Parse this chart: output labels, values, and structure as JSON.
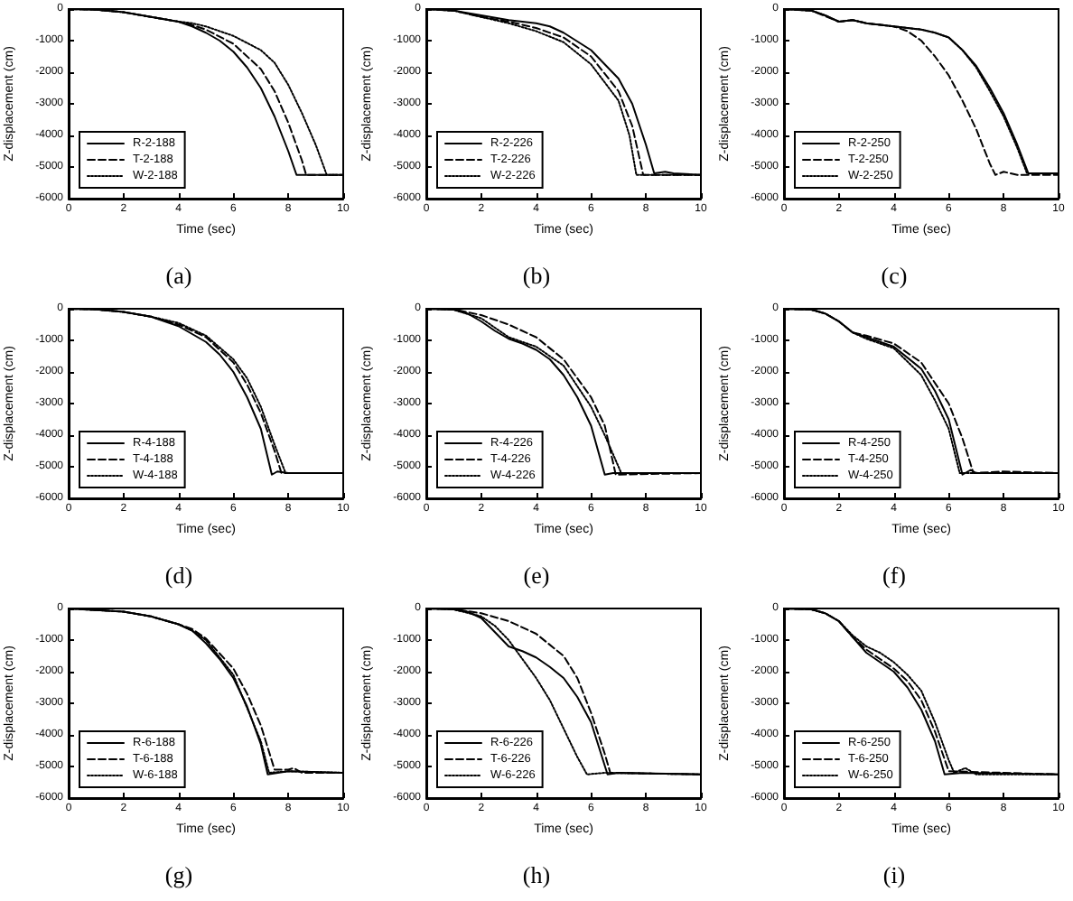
{
  "chart_data": [
    {
      "type": "line",
      "xlabel": "Time (sec)",
      "ylabel": "Z-displacement (cm)",
      "annotations": [
        "(a)"
      ],
      "xlim": [
        0,
        10
      ],
      "ylim": [
        -6000,
        0
      ],
      "xticks": [
        0,
        2,
        4,
        6,
        8,
        10
      ],
      "yticks": [
        -6000,
        -5000,
        -4000,
        -3000,
        -2000,
        -1000,
        0
      ],
      "legend": "bottom left",
      "series": [
        {
          "name": "R-2-188",
          "color": "#000000",
          "line_style": "solid",
          "x": [
            0,
            1,
            2,
            3,
            4,
            4.5,
            5,
            5.5,
            6,
            6.5,
            7,
            7.5,
            8,
            8.3,
            10
          ],
          "values": [
            0,
            -20,
            -100,
            -250,
            -400,
            -550,
            -750,
            -1000,
            -1350,
            -1850,
            -2500,
            -3400,
            -4500,
            -5250,
            -5250
          ]
        },
        {
          "name": "T-2-188",
          "color": "#000000",
          "line_style": "dashed",
          "x": [
            0,
            1,
            2,
            3,
            4,
            4.3,
            5,
            6,
            7,
            7.5,
            8,
            8.5,
            8.65,
            10
          ],
          "values": [
            0,
            -20,
            -100,
            -250,
            -400,
            -450,
            -650,
            -1100,
            -1900,
            -2600,
            -3600,
            -4800,
            -5250,
            -5250
          ]
        },
        {
          "name": "W-2-188",
          "color": "#000000",
          "line_style": "dotted",
          "x": [
            0,
            1,
            2,
            3,
            4,
            4.5,
            5,
            6,
            7,
            7.5,
            8,
            8.5,
            9,
            9.4,
            10
          ],
          "values": [
            0,
            -20,
            -100,
            -250,
            -400,
            -450,
            -550,
            -850,
            -1300,
            -1700,
            -2400,
            -3300,
            -4300,
            -5250,
            -5250
          ]
        }
      ]
    },
    {
      "type": "line",
      "xlabel": "Time (sec)",
      "ylabel": "Z-displacement (cm)",
      "annotations": [
        "(b)"
      ],
      "xlim": [
        0,
        10
      ],
      "ylim": [
        -6000,
        0
      ],
      "xticks": [
        0,
        2,
        4,
        6,
        8,
        10
      ],
      "yticks": [
        -6000,
        -5000,
        -4000,
        -3000,
        -2000,
        -1000,
        0
      ],
      "legend": "bottom left",
      "series": [
        {
          "name": "R-2-226",
          "color": "#000000",
          "line_style": "solid",
          "x": [
            0,
            1,
            2,
            3,
            4,
            4.5,
            5,
            6,
            7,
            7.5,
            8,
            8.3,
            8.7,
            9,
            10
          ],
          "values": [
            0,
            -50,
            -200,
            -350,
            -450,
            -550,
            -750,
            -1300,
            -2200,
            -3000,
            -4300,
            -5200,
            -5150,
            -5200,
            -5250
          ]
        },
        {
          "name": "T-2-226",
          "color": "#000000",
          "line_style": "dashed",
          "x": [
            0,
            1,
            2,
            3,
            4,
            5,
            6,
            7,
            7.5,
            7.9,
            10
          ],
          "values": [
            0,
            -50,
            -250,
            -400,
            -600,
            -900,
            -1500,
            -2600,
            -3700,
            -5250,
            -5250
          ]
        },
        {
          "name": "W-2-226",
          "color": "#000000",
          "line_style": "dotted",
          "x": [
            0,
            1,
            2,
            3,
            4,
            5,
            6,
            7,
            7.4,
            7.65,
            10
          ],
          "values": [
            0,
            -50,
            -250,
            -450,
            -700,
            -1050,
            -1750,
            -2900,
            -4000,
            -5250,
            -5250
          ]
        }
      ]
    },
    {
      "type": "line",
      "xlabel": "Time (sec)",
      "ylabel": "Z-displacement (cm)",
      "annotations": [
        "(c)"
      ],
      "xlim": [
        0,
        10
      ],
      "ylim": [
        -6000,
        0
      ],
      "xticks": [
        0,
        2,
        4,
        6,
        8,
        10
      ],
      "yticks": [
        -6000,
        -5000,
        -4000,
        -3000,
        -2000,
        -1000,
        0
      ],
      "legend": "bottom left",
      "series": [
        {
          "name": "R-2-250",
          "color": "#000000",
          "line_style": "solid",
          "x": [
            0,
            1,
            1.5,
            2,
            2.5,
            3,
            4,
            5,
            5.5,
            6,
            6.5,
            7,
            7.5,
            8,
            8.5,
            8.9,
            10
          ],
          "values": [
            0,
            -50,
            -200,
            -400,
            -350,
            -450,
            -550,
            -650,
            -750,
            -900,
            -1300,
            -1800,
            -2500,
            -3300,
            -4300,
            -5200,
            -5200
          ]
        },
        {
          "name": "T-2-250",
          "color": "#000000",
          "line_style": "dashed",
          "x": [
            0,
            1,
            2,
            2.5,
            3,
            4,
            4.5,
            5,
            5.5,
            6,
            6.5,
            7,
            7.5,
            7.7,
            8,
            8.5,
            10
          ],
          "values": [
            0,
            -50,
            -400,
            -350,
            -450,
            -550,
            -700,
            -1000,
            -1500,
            -2100,
            -2900,
            -3800,
            -4900,
            -5250,
            -5150,
            -5250,
            -5250
          ]
        },
        {
          "name": "W-2-250",
          "color": "#000000",
          "line_style": "dotted",
          "x": [
            0,
            1,
            1.5,
            2,
            2.5,
            3,
            4,
            5,
            5.5,
            6,
            6.5,
            7,
            7.5,
            8,
            8.5,
            8.85,
            10
          ],
          "values": [
            0,
            -50,
            -200,
            -400,
            -350,
            -450,
            -550,
            -650,
            -750,
            -900,
            -1300,
            -1850,
            -2600,
            -3400,
            -4400,
            -5200,
            -5200
          ]
        }
      ]
    },
    {
      "type": "line",
      "xlabel": "Time (sec)",
      "ylabel": "Z-displacement (cm)",
      "annotations": [
        "(d)"
      ],
      "xlim": [
        0,
        10
      ],
      "ylim": [
        -6000,
        0
      ],
      "xticks": [
        0,
        2,
        4,
        6,
        8,
        10
      ],
      "yticks": [
        -6000,
        -5000,
        -4000,
        -3000,
        -2000,
        -1000,
        0
      ],
      "legend": "bottom left",
      "series": [
        {
          "name": "R-4-188",
          "color": "#000000",
          "line_style": "solid",
          "x": [
            0,
            1,
            2,
            3,
            4,
            5,
            5.5,
            6,
            6.5,
            7,
            7.4,
            7.6,
            8,
            10
          ],
          "values": [
            0,
            -20,
            -100,
            -250,
            -550,
            -1050,
            -1450,
            -2000,
            -2800,
            -3800,
            -5250,
            -5150,
            -5200,
            -5200
          ]
        },
        {
          "name": "T-4-188",
          "color": "#000000",
          "line_style": "dashed",
          "x": [
            0,
            1,
            2,
            3,
            4,
            5,
            6,
            6.5,
            7,
            7.5,
            7.75,
            10
          ],
          "values": [
            0,
            -20,
            -100,
            -250,
            -500,
            -900,
            -1700,
            -2400,
            -3300,
            -4500,
            -5200,
            -5200
          ]
        },
        {
          "name": "W-4-188",
          "color": "#000000",
          "line_style": "dotted",
          "x": [
            0,
            1,
            2,
            3,
            4,
            5,
            6,
            6.5,
            7,
            7.5,
            7.9,
            10
          ],
          "values": [
            0,
            -20,
            -100,
            -250,
            -450,
            -850,
            -1600,
            -2200,
            -3100,
            -4300,
            -5200,
            -5200
          ]
        }
      ]
    },
    {
      "type": "line",
      "xlabel": "Time (sec)",
      "ylabel": "Z-displacement (cm)",
      "annotations": [
        "(e)"
      ],
      "xlim": [
        0,
        10
      ],
      "ylim": [
        -6000,
        0
      ],
      "xticks": [
        0,
        2,
        4,
        6,
        8,
        10
      ],
      "yticks": [
        -6000,
        -5000,
        -4000,
        -3000,
        -2000,
        -1000,
        0
      ],
      "legend": "bottom left",
      "series": [
        {
          "name": "R-4-226",
          "color": "#000000",
          "line_style": "solid",
          "x": [
            0,
            1,
            1.5,
            2,
            2.5,
            3,
            3.5,
            4,
            4.5,
            5,
            5.5,
            6,
            6.5,
            6.8,
            10
          ],
          "values": [
            0,
            -30,
            -150,
            -400,
            -700,
            -950,
            -1100,
            -1300,
            -1600,
            -2100,
            -2800,
            -3700,
            -5250,
            -5200,
            -5200
          ]
        },
        {
          "name": "T-4-226",
          "color": "#000000",
          "line_style": "dashed",
          "x": [
            0,
            1,
            2,
            3,
            4,
            5,
            6,
            6.5,
            6.9,
            10
          ],
          "values": [
            0,
            -20,
            -200,
            -500,
            -900,
            -1600,
            -2800,
            -3700,
            -5250,
            -5200
          ]
        },
        {
          "name": "W-4-226",
          "color": "#000000",
          "line_style": "dotted",
          "x": [
            0,
            1,
            2,
            2.5,
            3,
            4,
            5,
            6,
            6.5,
            7.1,
            10
          ],
          "values": [
            0,
            -30,
            -300,
            -600,
            -900,
            -1200,
            -1800,
            -3100,
            -4000,
            -5200,
            -5200
          ]
        }
      ]
    },
    {
      "type": "line",
      "xlabel": "Time (sec)",
      "ylabel": "Z-displacement (cm)",
      "annotations": [
        "(f)"
      ],
      "xlim": [
        0,
        10
      ],
      "ylim": [
        -6000,
        0
      ],
      "xticks": [
        0,
        2,
        4,
        6,
        8,
        10
      ],
      "yticks": [
        -6000,
        -5000,
        -4000,
        -3000,
        -2000,
        -1000,
        0
      ],
      "legend": "bottom left",
      "series": [
        {
          "name": "R-4-250",
          "color": "#000000",
          "line_style": "solid",
          "x": [
            0,
            1,
            1.5,
            2,
            2.5,
            3,
            4,
            5,
            5.5,
            6,
            6.5,
            6.8,
            7,
            10
          ],
          "values": [
            0,
            -30,
            -150,
            -400,
            -750,
            -900,
            -1200,
            -1900,
            -2600,
            -3500,
            -5250,
            -5100,
            -5200,
            -5200
          ]
        },
        {
          "name": "T-4-250",
          "color": "#000000",
          "line_style": "dashed",
          "x": [
            0,
            1,
            1.5,
            2,
            2.5,
            3,
            4,
            5,
            6,
            6.5,
            6.9,
            8,
            10
          ],
          "values": [
            0,
            -30,
            -150,
            -400,
            -750,
            -850,
            -1100,
            -1700,
            -3000,
            -4100,
            -5200,
            -5150,
            -5200
          ]
        },
        {
          "name": "W-4-250",
          "color": "#000000",
          "line_style": "dotted",
          "x": [
            0,
            1,
            1.5,
            2,
            2.5,
            3,
            4,
            5,
            5.5,
            6,
            6.4,
            10
          ],
          "values": [
            0,
            -30,
            -150,
            -400,
            -750,
            -950,
            -1250,
            -2100,
            -2900,
            -3800,
            -5200,
            -5200
          ]
        }
      ]
    },
    {
      "type": "line",
      "xlabel": "Time (sec)",
      "ylabel": "Z-displacement (cm)",
      "annotations": [
        "(g)"
      ],
      "xlim": [
        0,
        10
      ],
      "ylim": [
        -6000,
        0
      ],
      "xticks": [
        0,
        2,
        4,
        6,
        8,
        10
      ],
      "yticks": [
        -6000,
        -5000,
        -4000,
        -3000,
        -2000,
        -1000,
        0
      ],
      "legend": "bottom left",
      "series": [
        {
          "name": "R-6-188",
          "color": "#000000",
          "line_style": "solid",
          "x": [
            0,
            2,
            3,
            4,
            4.5,
            5,
            5.5,
            6,
            6.5,
            7,
            7.25,
            8,
            10
          ],
          "values": [
            0,
            -100,
            -250,
            -500,
            -700,
            -1100,
            -1600,
            -2200,
            -3100,
            -4300,
            -5250,
            -5150,
            -5200
          ]
        },
        {
          "name": "T-6-188",
          "color": "#000000",
          "line_style": "dashed",
          "x": [
            0,
            2,
            3,
            4,
            4.5,
            5,
            6,
            6.5,
            7,
            7.5,
            8,
            8.2,
            8.5,
            10
          ],
          "values": [
            0,
            -100,
            -250,
            -500,
            -650,
            -950,
            -1900,
            -2700,
            -3700,
            -5100,
            -5100,
            -5050,
            -5200,
            -5200
          ]
        },
        {
          "name": "W-6-188",
          "color": "#000000",
          "line_style": "dotted",
          "x": [
            0,
            2,
            3,
            4,
            4.5,
            5,
            6,
            7,
            7.3,
            8,
            10
          ],
          "values": [
            0,
            -100,
            -250,
            -500,
            -700,
            -1000,
            -2100,
            -4200,
            -5200,
            -5150,
            -5200
          ]
        }
      ]
    },
    {
      "type": "line",
      "xlabel": "Time (sec)",
      "ylabel": "Z-displacement (cm)",
      "annotations": [
        "(h)"
      ],
      "xlim": [
        0,
        10
      ],
      "ylim": [
        -6000,
        0
      ],
      "xticks": [
        0,
        2,
        4,
        6,
        8,
        10
      ],
      "yticks": [
        -6000,
        -5000,
        -4000,
        -3000,
        -2000,
        -1000,
        0
      ],
      "legend": "bottom left",
      "series": [
        {
          "name": "R-6-226",
          "color": "#000000",
          "line_style": "solid",
          "x": [
            0,
            1,
            1.5,
            2,
            2.5,
            3,
            3.5,
            4,
            4.5,
            5,
            5.5,
            6,
            6.6,
            7,
            10
          ],
          "values": [
            0,
            -30,
            -100,
            -300,
            -750,
            -1200,
            -1350,
            -1550,
            -1850,
            -2200,
            -2800,
            -3600,
            -5250,
            -5200,
            -5250
          ]
        },
        {
          "name": "T-6-226",
          "color": "#000000",
          "line_style": "dashed",
          "x": [
            0,
            1,
            2,
            3,
            4,
            5,
            5.5,
            6,
            6.5,
            6.7,
            10
          ],
          "values": [
            0,
            -20,
            -150,
            -400,
            -800,
            -1500,
            -2200,
            -3300,
            -4600,
            -5200,
            -5250
          ]
        },
        {
          "name": "W-6-226",
          "color": "#000000",
          "line_style": "dotted",
          "x": [
            0,
            1,
            2,
            2.5,
            3,
            3.5,
            4,
            4.5,
            5,
            5.5,
            5.85,
            6.5,
            10
          ],
          "values": [
            0,
            -30,
            -250,
            -550,
            -1000,
            -1600,
            -2200,
            -2900,
            -3800,
            -4700,
            -5250,
            -5200,
            -5250
          ]
        }
      ]
    },
    {
      "type": "line",
      "xlabel": "Time (sec)",
      "ylabel": "Z-displacement (cm)",
      "annotations": [
        "(i)"
      ],
      "xlim": [
        0,
        10
      ],
      "ylim": [
        -6000,
        0
      ],
      "xticks": [
        0,
        2,
        4,
        6,
        8,
        10
      ],
      "yticks": [
        -6000,
        -5000,
        -4000,
        -3000,
        -2000,
        -1000,
        0
      ],
      "legend": "bottom left",
      "series": [
        {
          "name": "R-6-250",
          "color": "#000000",
          "line_style": "solid",
          "x": [
            0,
            1,
            1.5,
            2,
            2.5,
            3,
            3.5,
            4,
            4.5,
            5,
            5.5,
            5.85,
            6.5,
            10
          ],
          "values": [
            0,
            -30,
            -150,
            -400,
            -900,
            -1400,
            -1700,
            -2000,
            -2500,
            -3200,
            -4200,
            -5250,
            -5200,
            -5250
          ]
        },
        {
          "name": "T-6-250",
          "color": "#000000",
          "line_style": "dashed",
          "x": [
            0,
            1,
            1.5,
            2,
            2.5,
            3,
            3.5,
            4,
            4.5,
            5,
            5.5,
            6,
            10
          ],
          "values": [
            0,
            -30,
            -150,
            -400,
            -900,
            -1300,
            -1600,
            -1900,
            -2300,
            -2900,
            -3900,
            -5150,
            -5250
          ]
        },
        {
          "name": "W-6-250",
          "color": "#000000",
          "line_style": "dotted",
          "x": [
            0,
            1,
            1.5,
            2,
            2.5,
            3,
            3.5,
            4,
            4.5,
            5,
            5.5,
            6,
            6.2,
            6.6,
            7,
            10
          ],
          "values": [
            0,
            -30,
            -150,
            -400,
            -850,
            -1200,
            -1400,
            -1700,
            -2100,
            -2600,
            -3600,
            -4800,
            -5200,
            -5050,
            -5250,
            -5250
          ]
        }
      ]
    }
  ]
}
